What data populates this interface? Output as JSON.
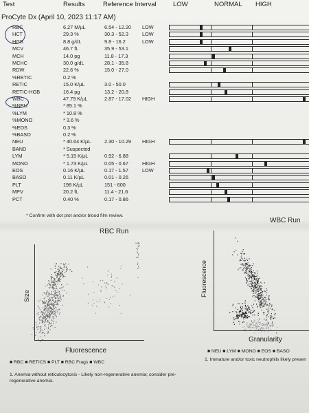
{
  "header": {
    "test": "Test",
    "results": "Results",
    "reference": "Reference Interval",
    "low": "LOW",
    "normal": "NORMAL",
    "high": "HIGH"
  },
  "title": "ProCyte Dx (April 10, 2023 11:17 AM)",
  "rows": [
    {
      "name": "RBC",
      "value": "6.27 M/µL",
      "ref": "6.54 - 12.20",
      "flag": "LOW",
      "gauge": 0.22
    },
    {
      "name": "HCT",
      "value": "29.3 %",
      "ref": "30.3 - 52.3",
      "flag": "LOW",
      "gauge": 0.22
    },
    {
      "name": "HGB",
      "value": "8.8 g/dL",
      "ref": "9.8 - 16.2",
      "flag": "LOW",
      "gauge": 0.22
    },
    {
      "name": "MCV",
      "value": "46.7 fL",
      "ref": "35.9 - 53.1",
      "flag": "",
      "gauge": 0.43
    },
    {
      "name": "MCH",
      "value": "14.0 pg",
      "ref": "11.8 - 17.3",
      "flag": "",
      "gauge": 0.31
    },
    {
      "name": "MCHC",
      "value": "30.0 g/dL",
      "ref": "28.1 - 35.8",
      "flag": "",
      "gauge": 0.25
    },
    {
      "name": "RDW",
      "value": "22.6 %",
      "ref": "15.0 - 27.0",
      "flag": "",
      "gauge": 0.39
    },
    {
      "name": "%RETIC",
      "value": "0.2 %",
      "ref": "",
      "flag": "",
      "gauge": null
    },
    {
      "name": "RETIC",
      "value": "15.0 K/µL",
      "ref": "3.0 - 50.0",
      "flag": "",
      "gauge": 0.35
    },
    {
      "name": "RETIC-HGB",
      "value": "16.4 pg",
      "ref": "13.2 - 20.8",
      "flag": "",
      "gauge": 0.4
    },
    {
      "name": "WBC",
      "value": "47.79 K/µL",
      "ref": "2.87 - 17.02",
      "flag": "HIGH",
      "gauge": 0.97
    },
    {
      "name": "%NEU",
      "value": "* 85.1 %",
      "ref": "",
      "flag": "",
      "gauge": null
    },
    {
      "name": "%LYM",
      "value": "* 10.8 %",
      "ref": "",
      "flag": "",
      "gauge": null
    },
    {
      "name": "%MONO",
      "value": "* 3.6 %",
      "ref": "",
      "flag": "",
      "gauge": null
    },
    {
      "name": "%EOS",
      "value": "0.3 %",
      "ref": "",
      "flag": "",
      "gauge": null
    },
    {
      "name": "%BASO",
      "value": "0.2 %",
      "ref": "",
      "flag": "",
      "gauge": null
    },
    {
      "name": "NEU",
      "value": "* 40.64 K/µL",
      "ref": "2.30 - 10.29",
      "flag": "HIGH",
      "gauge": 0.97
    },
    {
      "name": "BAND",
      "value": "* Suspected",
      "ref": "",
      "flag": "",
      "gauge": null
    },
    {
      "name": "LYM",
      "value": "* 5.15 K/µL",
      "ref": "0.92 - 6.88",
      "flag": "",
      "gauge": 0.48
    },
    {
      "name": "MONO",
      "value": "* 1.73 K/µL",
      "ref": "0.05 - 0.67",
      "flag": "HIGH",
      "gauge": 0.69
    },
    {
      "name": "EOS",
      "value": "0.16 K/µL",
      "ref": "0.17 - 1.57",
      "flag": "LOW",
      "gauge": 0.27
    },
    {
      "name": "BASO",
      "value": "0.11 K/µL",
      "ref": "0.01 - 0.26",
      "flag": "",
      "gauge": 0.31
    },
    {
      "name": "PLT",
      "value": "198 K/µL",
      "ref": "151 - 600",
      "flag": "",
      "gauge": 0.34
    },
    {
      "name": "MPV",
      "value": "20.2 fL",
      "ref": "11.4 - 21.6",
      "flag": "",
      "gauge": 0.4
    },
    {
      "name": "PCT",
      "value": "0.40 %",
      "ref": "0.17 - 0.86",
      "flag": "",
      "gauge": 0.42
    }
  ],
  "footnote_confirm": "* Confirm with dot plot and/or blood film review.",
  "rbc_plot": {
    "title": "RBC Run",
    "xlabel": "Fluorescence",
    "ylabel": "Size",
    "legend": "■ RBC ■ RETICS ■ PLT ■ RBC Frags ■ WBC"
  },
  "wbc_plot": {
    "title": "WBC Run",
    "xlabel": "Granularity",
    "ylabel": "Fluorescence",
    "legend": "■ NEU ■ LYM ■ MONO ■ EOS ■ BASO"
  },
  "note1": "1. Anemia without reticulocytosis - Likely non-regenerative anemia; consider pre-regenerative anemia.",
  "note2": "1. Immature and/or toxic neutrophils likely presen"
}
